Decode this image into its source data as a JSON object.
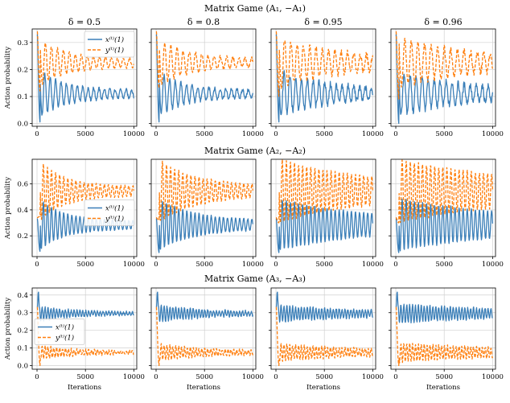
{
  "figure": {
    "ylabel": "Action probability",
    "xlabel": "Iterations"
  },
  "chart_data": [
    {
      "type": "line",
      "row_title": "Matrix Game (A₁, −A₁)",
      "xlim": [
        -500,
        10300
      ],
      "ylim": [
        -0.01,
        0.35
      ],
      "yticks": [
        0.0,
        0.1,
        0.2,
        0.3
      ],
      "ytick_labels": [
        "0.0",
        "0.1",
        "0.2",
        "0.3"
      ],
      "xticks": [
        0,
        5000,
        10000
      ],
      "xtick_labels": [
        "0",
        "5000",
        "10000"
      ],
      "legend": {
        "location": "upper right",
        "panel": 0,
        "entries": [
          "x⁽ᵗ⁾(1)",
          "y⁽ᵗ⁾(1)"
        ]
      },
      "panels": [
        {
          "title": "δ = 0.5",
          "series": [
            {
              "name": "x⁽ᵗ⁾(1)",
              "color": "#3b7fb8",
              "style": "solid",
              "params": {
                "start": 0.33,
                "dip": 0.005,
                "mean": 0.11,
                "amp0": 0.075,
                "decay": 2500,
                "period": 560,
                "noise": 0.006
              }
            },
            {
              "name": "y⁽ᵗ⁾(1)",
              "color": "#ff7f0e",
              "style": "dashed",
              "params": {
                "start": 0.34,
                "dip": 0.12,
                "mean": 0.225,
                "amp0": 0.075,
                "decay": 2800,
                "period": 620,
                "noise": 0.006
              }
            }
          ]
        },
        {
          "title": "δ = 0.8",
          "series": [
            {
              "name": "x⁽ᵗ⁾(1)",
              "color": "#3b7fb8",
              "style": "solid",
              "params": {
                "start": 0.33,
                "dip": 0.005,
                "mean": 0.11,
                "amp0": 0.07,
                "decay": 2600,
                "period": 580,
                "noise": 0.007
              }
            },
            {
              "name": "y⁽ᵗ⁾(1)",
              "color": "#ff7f0e",
              "style": "dashed",
              "params": {
                "start": 0.34,
                "dip": 0.13,
                "mean": 0.225,
                "amp0": 0.075,
                "decay": 3000,
                "period": 640,
                "noise": 0.007
              }
            }
          ]
        },
        {
          "title": "δ = 0.95",
          "series": [
            {
              "name": "x⁽ᵗ⁾(1)",
              "color": "#3b7fb8",
              "style": "solid",
              "params": {
                "start": 0.33,
                "dip": 0.005,
                "mean": 0.11,
                "amp0": 0.07,
                "decay": 5000,
                "period": 600,
                "noise": 0.012
              }
            },
            {
              "name": "y⁽ᵗ⁾(1)",
              "color": "#ff7f0e",
              "style": "dashed",
              "params": {
                "start": 0.34,
                "dip": 0.1,
                "mean": 0.225,
                "amp0": 0.08,
                "decay": 5500,
                "period": 650,
                "noise": 0.012
              }
            }
          ]
        },
        {
          "title": "δ = 0.96",
          "series": [
            {
              "name": "x⁽ᵗ⁾(1)",
              "color": "#3b7fb8",
              "style": "solid",
              "params": {
                "start": 0.33,
                "dip": 0.0,
                "mean": 0.11,
                "amp0": 0.07,
                "decay": 6000,
                "period": 620,
                "noise": 0.012
              }
            },
            {
              "name": "y⁽ᵗ⁾(1)",
              "color": "#ff7f0e",
              "style": "dashed",
              "params": {
                "start": 0.34,
                "dip": 0.09,
                "mean": 0.225,
                "amp0": 0.08,
                "decay": 6500,
                "period": 680,
                "noise": 0.012
              }
            }
          ]
        }
      ]
    },
    {
      "type": "line",
      "row_title": "Matrix Game (A₂, −A₂)",
      "xlim": [
        -500,
        10300
      ],
      "ylim": [
        0.04,
        0.79
      ],
      "yticks": [
        0.2,
        0.4,
        0.6
      ],
      "ytick_labels": [
        "0.2",
        "0.4",
        "0.6"
      ],
      "xticks": [
        0,
        5000,
        10000
      ],
      "xtick_labels": [
        "0",
        "5000",
        "10000"
      ],
      "legend": {
        "location": "center right",
        "panel": 0,
        "entries": [
          "x⁽ᵗ⁾(1)",
          "y⁽ᵗ⁾(1)"
        ]
      },
      "panels": [
        {
          "title": "",
          "series": [
            {
              "name": "x⁽ᵗ⁾(1)",
              "color": "#3b7fb8",
              "style": "solid",
              "params": {
                "start": 0.33,
                "dip": 0.08,
                "mean": 0.285,
                "amp0": 0.17,
                "decay": 2600,
                "period": 420,
                "noise": 0.005
              }
            },
            {
              "name": "y⁽ᵗ⁾(1)",
              "color": "#ff7f0e",
              "style": "dashed",
              "params": {
                "start": 0.34,
                "dip": 0.35,
                "mean": 0.545,
                "amp0": 0.2,
                "decay": 2600,
                "period": 420,
                "noise": 0.005
              }
            }
          ]
        },
        {
          "title": "",
          "series": [
            {
              "name": "x⁽ᵗ⁾(1)",
              "color": "#3b7fb8",
              "style": "solid",
              "params": {
                "start": 0.33,
                "dip": 0.07,
                "mean": 0.285,
                "amp0": 0.17,
                "decay": 3800,
                "period": 420,
                "noise": 0.006
              }
            },
            {
              "name": "y⁽ᵗ⁾(1)",
              "color": "#ff7f0e",
              "style": "dashed",
              "params": {
                "start": 0.34,
                "dip": 0.32,
                "mean": 0.545,
                "amp0": 0.21,
                "decay": 3800,
                "period": 420,
                "noise": 0.006
              }
            }
          ]
        },
        {
          "title": "",
          "series": [
            {
              "name": "x⁽ᵗ⁾(1)",
              "color": "#3b7fb8",
              "style": "solid",
              "params": {
                "start": 0.33,
                "dip": 0.07,
                "mean": 0.285,
                "amp0": 0.17,
                "decay": 9000,
                "period": 420,
                "noise": 0.008
              }
            },
            {
              "name": "y⁽ᵗ⁾(1)",
              "color": "#ff7f0e",
              "style": "dashed",
              "params": {
                "start": 0.34,
                "dip": 0.3,
                "mean": 0.545,
                "amp0": 0.21,
                "decay": 9000,
                "period": 420,
                "noise": 0.008
              }
            }
          ]
        },
        {
          "title": "",
          "series": [
            {
              "name": "x⁽ᵗ⁾(1)",
              "color": "#3b7fb8",
              "style": "solid",
              "params": {
                "start": 0.33,
                "dip": 0.07,
                "mean": 0.285,
                "amp0": 0.17,
                "decay": 12000,
                "period": 420,
                "noise": 0.008
              }
            },
            {
              "name": "y⁽ᵗ⁾(1)",
              "color": "#ff7f0e",
              "style": "dashed",
              "params": {
                "start": 0.34,
                "dip": 0.3,
                "mean": 0.545,
                "amp0": 0.21,
                "decay": 12000,
                "period": 420,
                "noise": 0.008
              }
            }
          ]
        }
      ]
    },
    {
      "type": "line",
      "row_title": "Matrix Game (A₃, −A₃)",
      "xlim": [
        -500,
        10300
      ],
      "ylim": [
        -0.02,
        0.44
      ],
      "yticks": [
        0.0,
        0.1,
        0.2,
        0.3,
        0.4
      ],
      "ytick_labels": [
        "0.0",
        "0.1",
        "0.2",
        "0.3",
        "0.4"
      ],
      "xticks": [
        0,
        5000,
        10000
      ],
      "xtick_labels": [
        "0",
        "5000",
        "10000"
      ],
      "legend": {
        "location": "center left",
        "panel": 0,
        "entries": [
          "x⁽ᵗ⁾(1)",
          "y⁽ᵗ⁾(1)"
        ]
      },
      "panels": [
        {
          "title": "",
          "series": [
            {
              "name": "x⁽ᵗ⁾(1)",
              "color": "#3b7fb8",
              "style": "solid",
              "params": {
                "start": 0.33,
                "peak": 0.42,
                "mean": 0.295,
                "amp0": 0.035,
                "decay": 3500,
                "period": 300,
                "noise": 0.006
              }
            },
            {
              "name": "y⁽ᵗ⁾(1)",
              "color": "#ff7f0e",
              "style": "dashed",
              "params": {
                "start": 0.33,
                "dip": 0.0,
                "mean": 0.075,
                "amp0": 0.035,
                "decay": 3500,
                "period": 300,
                "noise": 0.006
              }
            }
          ]
        },
        {
          "title": "",
          "series": [
            {
              "name": "x⁽ᵗ⁾(1)",
              "color": "#3b7fb8",
              "style": "solid",
              "params": {
                "start": 0.33,
                "peak": 0.42,
                "mean": 0.295,
                "amp0": 0.04,
                "decay": 5000,
                "period": 300,
                "noise": 0.006
              }
            },
            {
              "name": "y⁽ᵗ⁾(1)",
              "color": "#ff7f0e",
              "style": "dashed",
              "params": {
                "start": 0.33,
                "dip": 0.0,
                "mean": 0.075,
                "amp0": 0.04,
                "decay": 5000,
                "period": 300,
                "noise": 0.006
              }
            }
          ]
        },
        {
          "title": "",
          "series": [
            {
              "name": "x⁽ᵗ⁾(1)",
              "color": "#3b7fb8",
              "style": "solid",
              "params": {
                "start": 0.33,
                "peak": 0.42,
                "mean": 0.295,
                "amp0": 0.04,
                "decay": 9000,
                "period": 300,
                "noise": 0.007
              }
            },
            {
              "name": "y⁽ᵗ⁾(1)",
              "color": "#ff7f0e",
              "style": "dashed",
              "params": {
                "start": 0.33,
                "dip": 0.0,
                "mean": 0.075,
                "amp0": 0.04,
                "decay": 9000,
                "period": 300,
                "noise": 0.007
              }
            }
          ]
        },
        {
          "title": "",
          "series": [
            {
              "name": "x⁽ᵗ⁾(1)",
              "color": "#3b7fb8",
              "style": "solid",
              "params": {
                "start": 0.33,
                "peak": 0.42,
                "mean": 0.295,
                "amp0": 0.045,
                "decay": 12000,
                "period": 300,
                "noise": 0.007
              }
            },
            {
              "name": "y⁽ᵗ⁾(1)",
              "color": "#ff7f0e",
              "style": "dashed",
              "params": {
                "start": 0.33,
                "dip": 0.0,
                "mean": 0.075,
                "amp0": 0.045,
                "decay": 12000,
                "period": 300,
                "noise": 0.007
              }
            }
          ]
        }
      ]
    }
  ]
}
